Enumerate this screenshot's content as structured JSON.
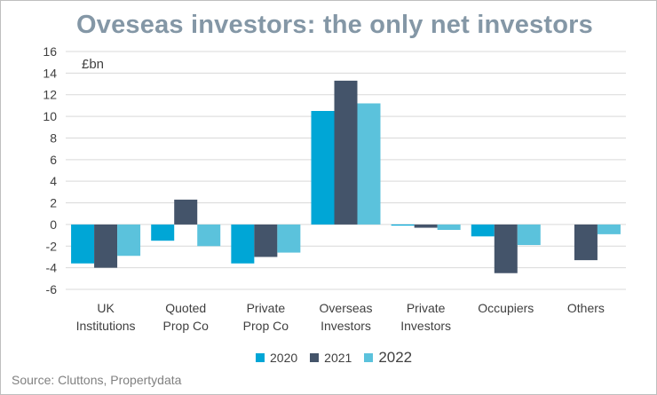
{
  "title": "Oveseas investors: the only net investors",
  "unit_label": "£bn",
  "source": "Source: Cluttons,  Propertydata",
  "chart_data": {
    "type": "bar",
    "title": "Oveseas investors: the only net investors",
    "ylabel": "£bn",
    "xlabel": "",
    "ylim": [
      -6,
      16
    ],
    "yticks": [
      -6,
      -4,
      -2,
      0,
      2,
      4,
      6,
      8,
      10,
      12,
      14,
      16
    ],
    "grid": true,
    "legend_position": "bottom",
    "categories": [
      [
        "UK",
        "Institutions"
      ],
      [
        "Quoted",
        "Prop Co"
      ],
      [
        "Private",
        "Prop Co"
      ],
      [
        "Overseas",
        "Investors"
      ],
      [
        "Private",
        "Investors"
      ],
      [
        "Occupiers"
      ],
      [
        "Others"
      ]
    ],
    "series": [
      {
        "name": "2020",
        "color": "#00a6d6",
        "values": [
          -3.6,
          -1.5,
          -3.6,
          10.5,
          -0.1,
          -1.1,
          0.0
        ]
      },
      {
        "name": "2021",
        "color": "#44546a",
        "values": [
          -4.0,
          2.3,
          -3.0,
          13.3,
          -0.3,
          -4.5,
          -3.3
        ]
      },
      {
        "name": "2022",
        "color": "#5bc2dc",
        "values": [
          -2.9,
          -2.0,
          -2.6,
          11.2,
          -0.5,
          -1.9,
          -0.9
        ]
      }
    ]
  }
}
